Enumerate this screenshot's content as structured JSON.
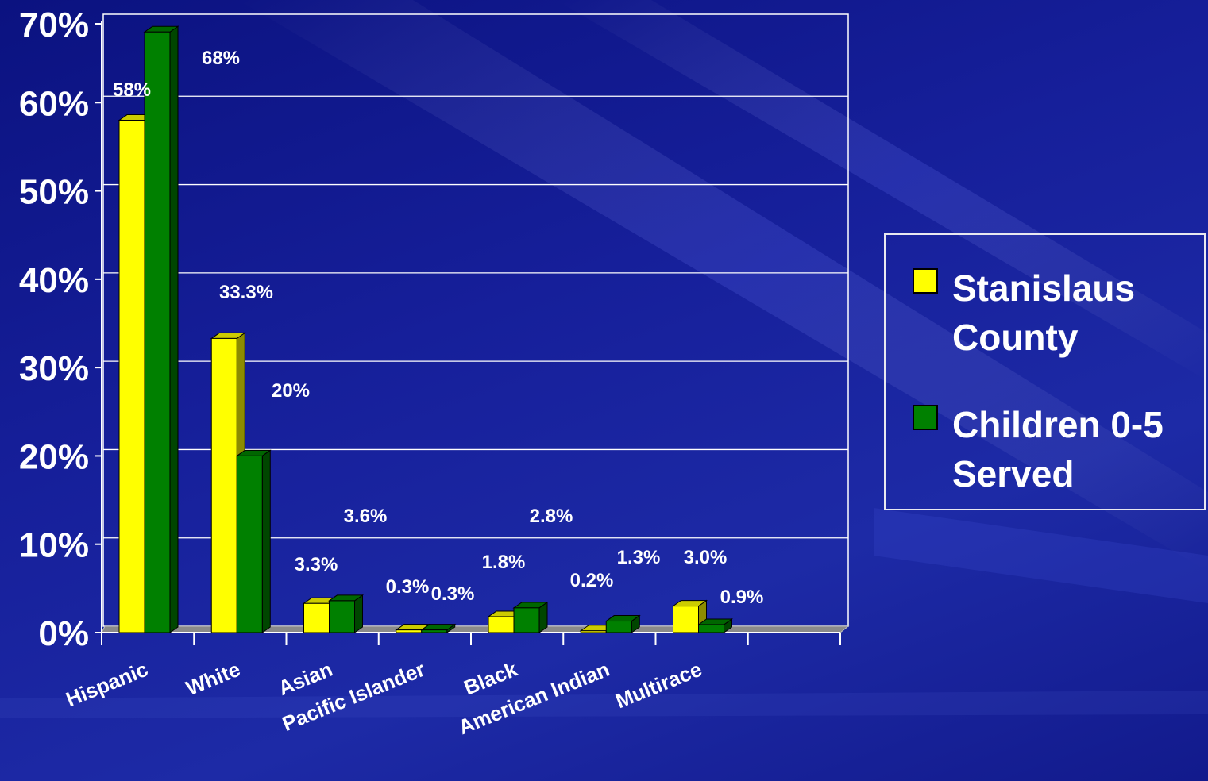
{
  "chart_data": {
    "type": "bar",
    "categories": [
      "Hispanic",
      "White",
      "Asian",
      "Pacific Islander",
      "Black",
      "American Indian",
      "Multirace"
    ],
    "series": [
      {
        "name": "Stanislaus County",
        "values": [
          58,
          33.3,
          3.3,
          0.3,
          1.8,
          0.2,
          3.0
        ],
        "labels": [
          "58%",
          "33.3%",
          "3.3%",
          "0.3%",
          "1.8%",
          "0.2%",
          "3.0%"
        ],
        "color": "#ffff00"
      },
      {
        "name": "Children 0-5 Served",
        "values": [
          68,
          20,
          3.6,
          0.3,
          2.8,
          1.3,
          0.9
        ],
        "labels": [
          "68%",
          "20%",
          "3.6%",
          "0.3%",
          "2.8%",
          "1.3%",
          "0.9%"
        ],
        "color": "#008000"
      }
    ],
    "y_ticks": [
      "0%",
      "10%",
      "20%",
      "30%",
      "40%",
      "50%",
      "60%",
      "70%"
    ],
    "ylim": [
      0,
      70
    ],
    "grid": true,
    "legend_position": "right",
    "title": "",
    "xlabel": "",
    "ylabel": ""
  },
  "legend": {
    "items": [
      {
        "label": "Stanislaus County",
        "color": "#ffff00"
      },
      {
        "label": "Children 0-5 Served",
        "color": "#008000"
      }
    ]
  }
}
